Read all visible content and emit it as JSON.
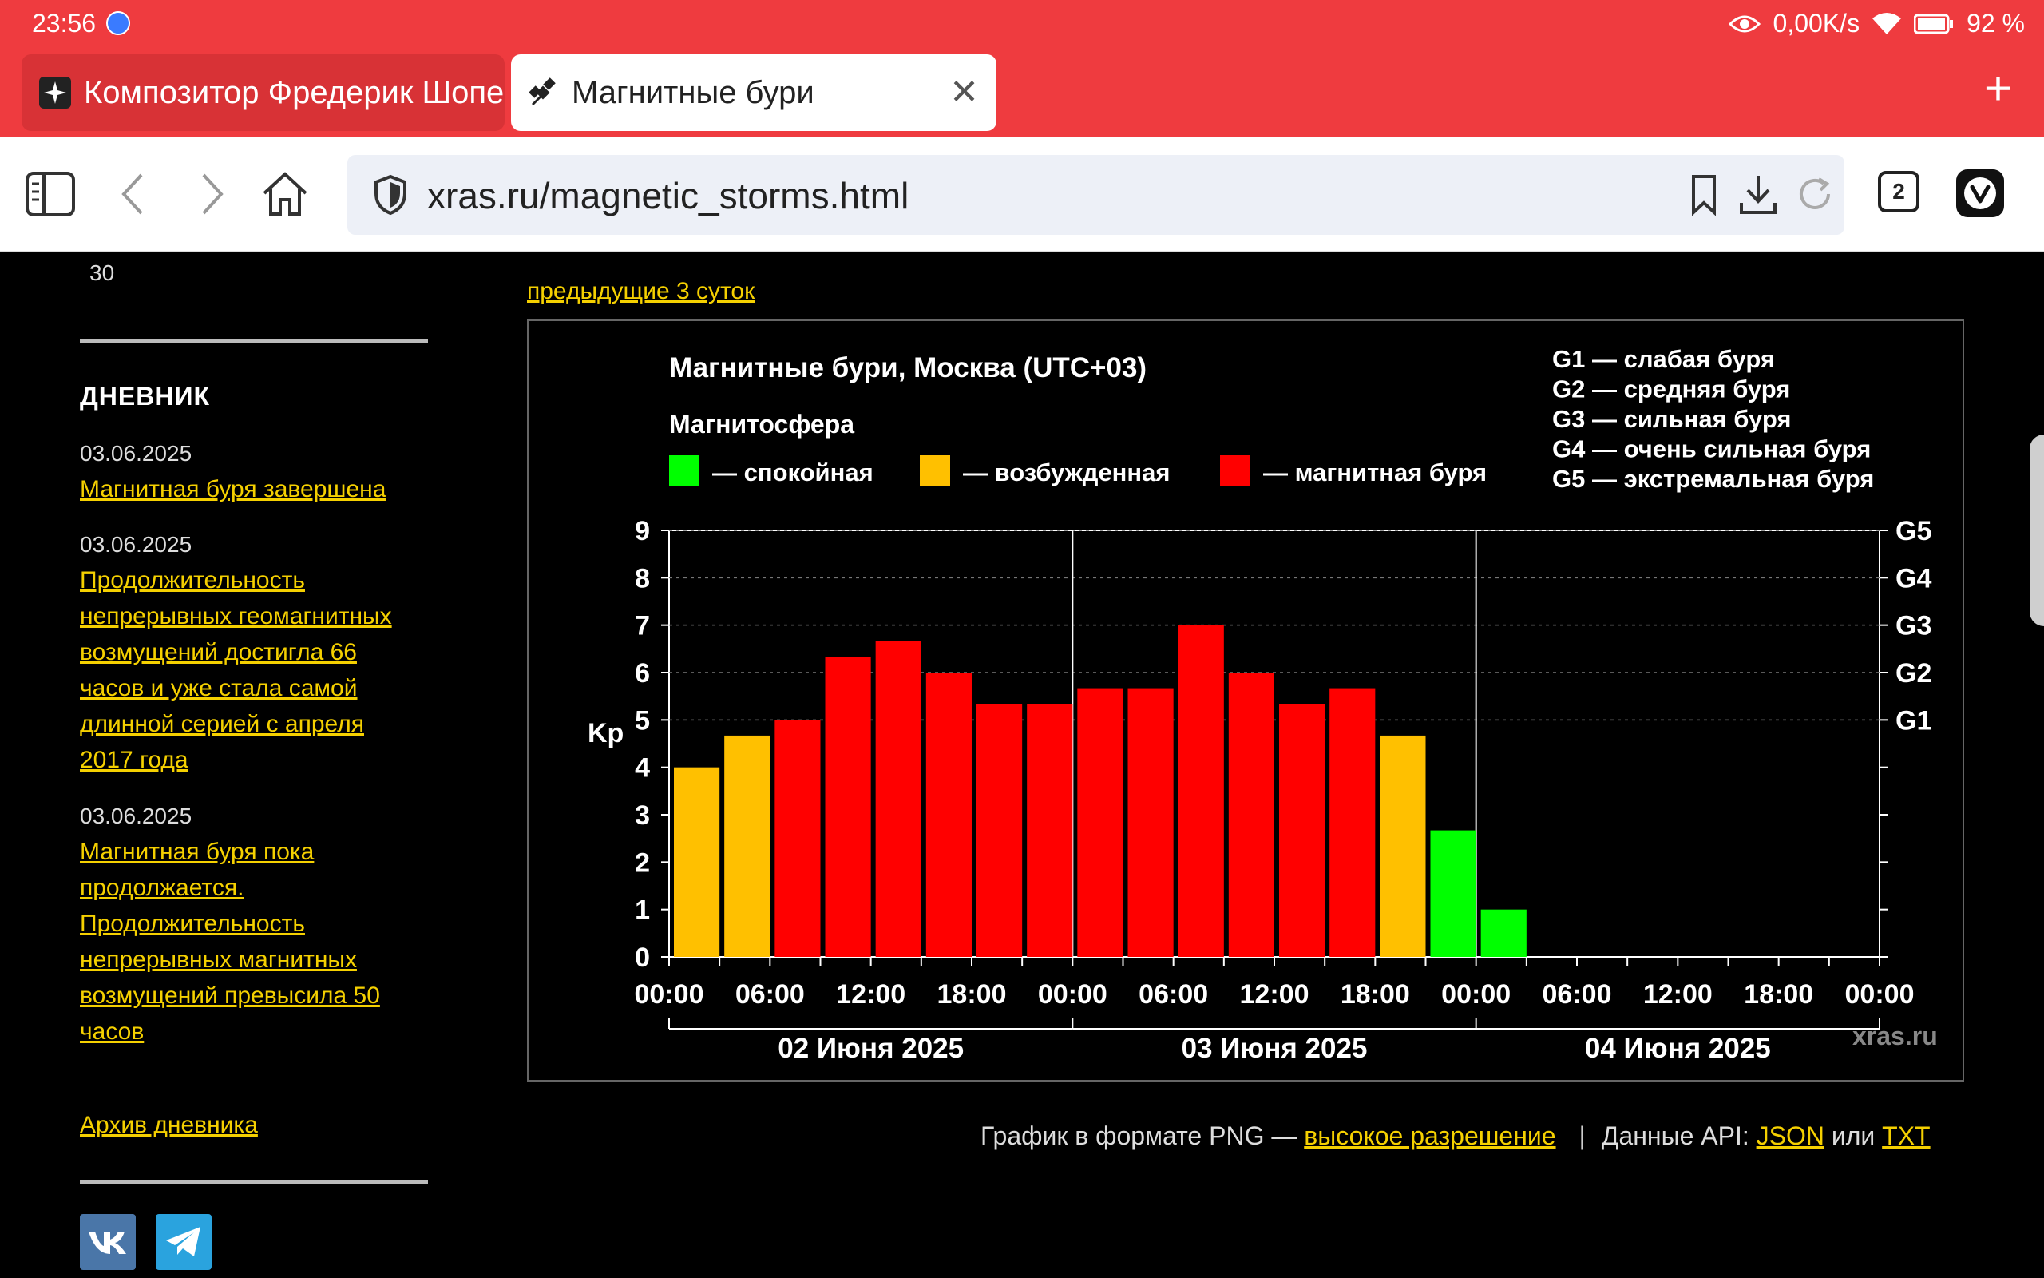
{
  "status": {
    "time": "23:56",
    "net_speed": "0,00K/s",
    "battery": "92 %"
  },
  "tabs": [
    {
      "title": "Композитор Фредерик Шопен"
    },
    {
      "title": "Магнитные бури"
    }
  ],
  "toolbar": {
    "url_host": "xras.ru",
    "url_path": "/magnetic_storms.html",
    "tab_count": "2"
  },
  "sidebar": {
    "top_number": "30",
    "diary_title": "ДНЕВНИК",
    "entries": [
      {
        "date": "03.06.2025",
        "text": "Магнитная буря завершена"
      },
      {
        "date": "03.06.2025",
        "text": "Продолжительность непрерывных геомагнитных возмущений достигла 66 часов и уже стала самой длинной серией с апреля 2017 года"
      },
      {
        "date": "03.06.2025",
        "text": "Магнитная буря пока продолжается. Продолжительность непрерывных магнитных возмущений превысила 50 часов"
      }
    ],
    "archive_link": "Архив дневника"
  },
  "main": {
    "prev_link": "предыдущие 3 суток",
    "footer": {
      "png_text": "График в формате PNG — ",
      "png_link": "высокое разрешение",
      "sep": "|",
      "api_text": "Данные API: ",
      "json_link": "JSON",
      "or_text": " или ",
      "txt_link": "TXT"
    }
  },
  "chart_data": {
    "type": "bar",
    "title": "Магнитные бури, Москва (UTC+03)",
    "legend_title": "Магнитосфера",
    "legend": [
      {
        "label": "— спокойная",
        "color": "#00ff00"
      },
      {
        "label": "— возбужденная",
        "color": "#ffc000"
      },
      {
        "label": "— магнитная буря",
        "color": "#ff0000"
      }
    ],
    "g_legend": [
      "G1 — слабая буря",
      "G2 — средняя буря",
      "G3 — сильная буря",
      "G4 — очень сильная буря",
      "G5 — экстремальная буря"
    ],
    "ylabel": "Kp",
    "ylim": [
      0,
      9
    ],
    "yticks": [
      "0",
      "1",
      "2",
      "3",
      "4",
      "5",
      "6",
      "7",
      "8",
      "9"
    ],
    "g_ticks": [
      {
        "label": "G1",
        "kp": 5
      },
      {
        "label": "G2",
        "kp": 6
      },
      {
        "label": "G3",
        "kp": 7
      },
      {
        "label": "G4",
        "kp": 8
      },
      {
        "label": "G5",
        "kp": 9
      }
    ],
    "xticks": [
      "00:00",
      "06:00",
      "12:00",
      "18:00",
      "00:00",
      "06:00",
      "12:00",
      "18:00",
      "00:00",
      "06:00",
      "12:00",
      "18:00",
      "00:00"
    ],
    "days": [
      "02 Июня 2025",
      "03 Июня 2025",
      "04 Июня 2025"
    ],
    "watermark": "xras.ru",
    "values": [
      4.0,
      4.67,
      5.0,
      6.33,
      6.67,
      6.0,
      5.33,
      5.33,
      5.67,
      5.67,
      7.0,
      6.0,
      5.33,
      5.67,
      4.67,
      2.67,
      1.0
    ],
    "colors": {
      "quiet": "#00ff00",
      "active": "#ffc000",
      "storm": "#ff0000"
    }
  }
}
